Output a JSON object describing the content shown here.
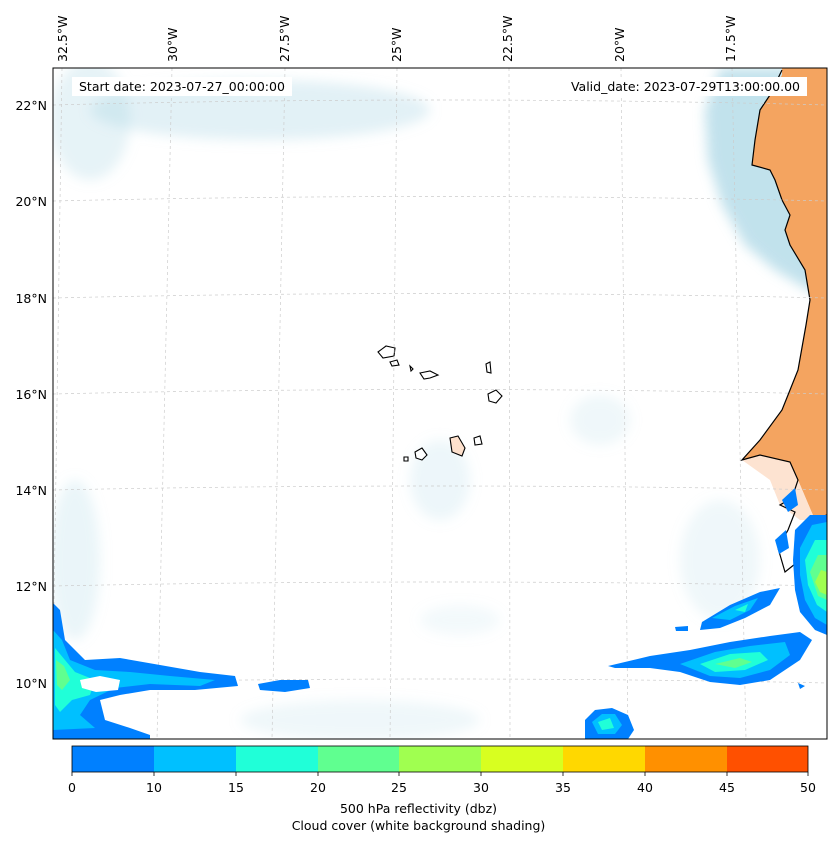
{
  "map": {
    "start_date_text": "Start date: 2023-07-27_00:00:00",
    "valid_date_text": "Valid_date: 2023-07-29T13:00:00.00",
    "longitude_labels": [
      "32.5°W",
      "30°W",
      "27.5°W",
      "25°W",
      "22.5°W",
      "20°W",
      "17.5°W"
    ],
    "latitude_labels": [
      "22°N",
      "20°N",
      "18°N",
      "16°N",
      "14°N",
      "12°N",
      "10°N"
    ],
    "colors": {
      "land_sahara": "#f4a460",
      "cloud": "#add8e6",
      "coastline": "#000000",
      "gridline": "#cccccc"
    }
  },
  "colorbar": {
    "tick_labels": [
      "0",
      "10",
      "15",
      "20",
      "25",
      "30",
      "35",
      "40",
      "45",
      "50"
    ],
    "colors": [
      "#0080ff",
      "#00c0ff",
      "#20ffd8",
      "#60ff90",
      "#a0ff50",
      "#d8ff20",
      "#ffd800",
      "#ff9000",
      "#ff5000"
    ],
    "label_line1": "500 hPa reflectivity (dbz)",
    "label_line2": "Cloud cover (white background shading)"
  }
}
